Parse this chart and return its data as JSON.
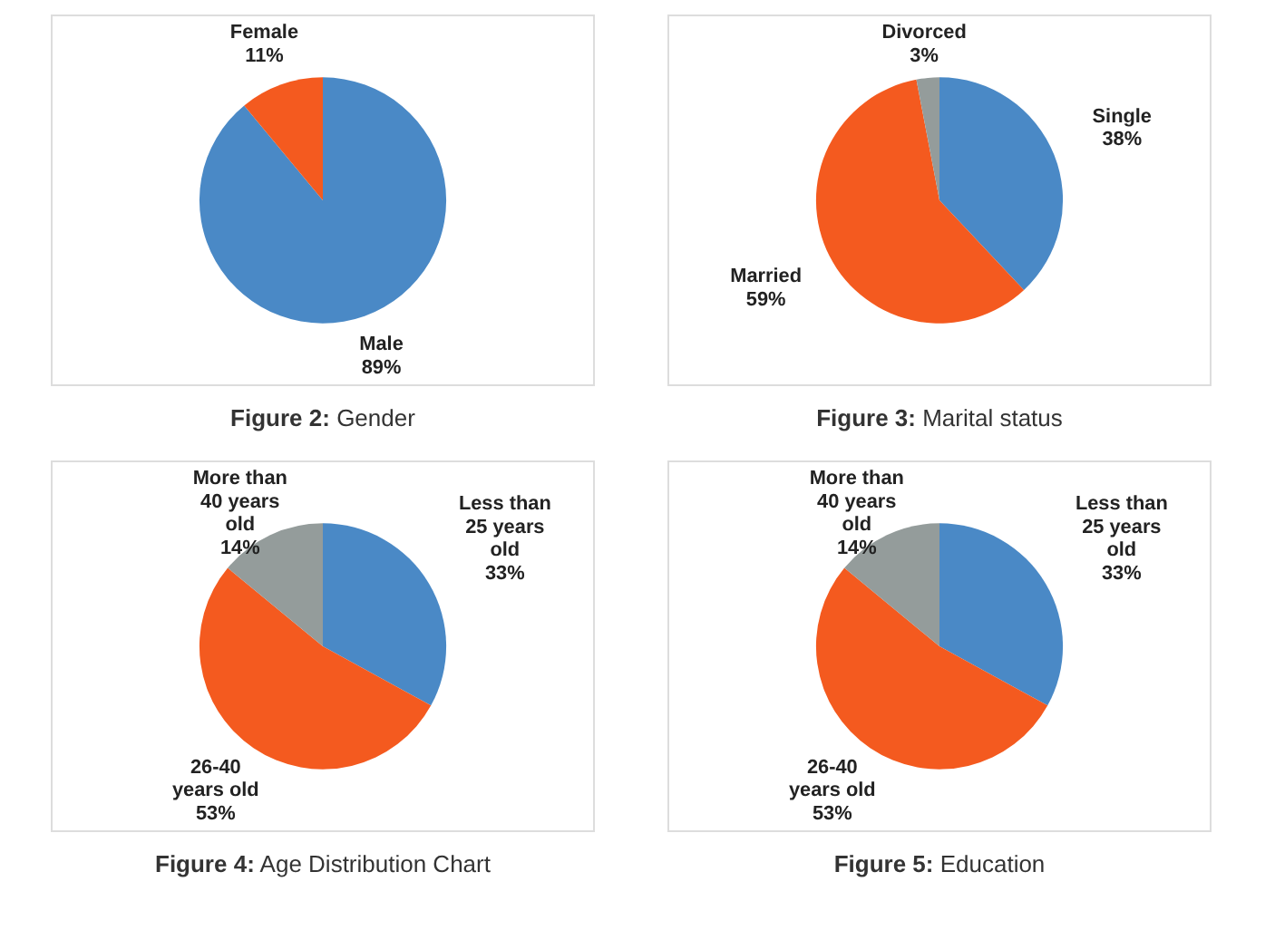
{
  "chart_data": [
    {
      "type": "pie",
      "title": "Figure 2: Gender",
      "categories": [
        "Male",
        "Female"
      ],
      "values": [
        89,
        11
      ],
      "colors": [
        "#4a89c6",
        "#f45a1f"
      ],
      "value_labels": [
        "89%",
        "11%"
      ],
      "legend": false
    },
    {
      "type": "pie",
      "title": "Figure 3: Marital status",
      "categories": [
        "Single",
        "Married",
        "Divorced"
      ],
      "values": [
        38,
        59,
        3
      ],
      "colors": [
        "#4a89c6",
        "#f45a1f",
        "#949c9b"
      ],
      "value_labels": [
        "38%",
        "59%",
        "3%"
      ],
      "legend": false
    },
    {
      "type": "pie",
      "title": "Figure 4: Age Distribution Chart",
      "categories": [
        "Less than 25 years old",
        "26-40 years old",
        "More than 40 years old"
      ],
      "values": [
        33,
        53,
        14
      ],
      "colors": [
        "#4a89c6",
        "#f45a1f",
        "#949c9b"
      ],
      "value_labels": [
        "33%",
        "53%",
        "14%"
      ],
      "legend": false
    },
    {
      "type": "pie",
      "title": "Figure 5: Education",
      "categories": [
        "Less than 25 years old",
        "26-40 years old",
        "More than 40 years old"
      ],
      "values": [
        33,
        53,
        14
      ],
      "colors": [
        "#4a89c6",
        "#f45a1f",
        "#949c9b"
      ],
      "value_labels": [
        "33%",
        "53%",
        "14%"
      ],
      "legend": false
    }
  ]
}
